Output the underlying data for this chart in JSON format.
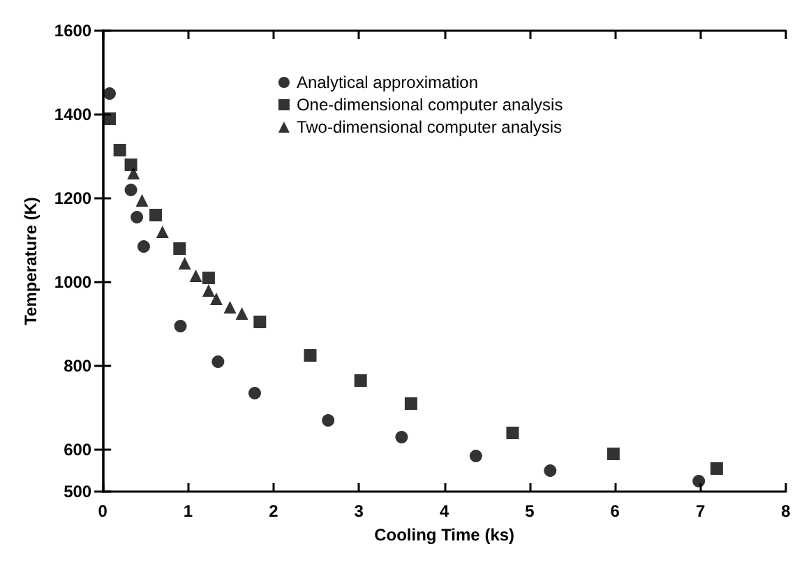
{
  "chart_data": {
    "type": "scatter",
    "xlabel": "Cooling Time (ks)",
    "ylabel": "Temperature (K)",
    "xlim": [
      0,
      8
    ],
    "xticks": [
      0,
      1,
      2,
      3,
      4,
      5,
      6,
      7,
      8
    ],
    "ylim": [
      500,
      1600
    ],
    "yticks": [
      500,
      600,
      800,
      1000,
      1200,
      1400,
      1600
    ],
    "grid": false,
    "legend": "top",
    "series": [
      {
        "name": "Analytical approximation",
        "color": "#000000",
        "marker": "circle",
        "x": [
          0.08,
          0.33,
          0.4,
          0.48,
          0.91,
          1.35,
          1.78,
          2.64,
          3.5,
          4.37,
          5.24,
          6.98
        ],
        "values": [
          1450,
          1220,
          1155,
          1085,
          895,
          810,
          735,
          670,
          630,
          585,
          550,
          525
        ]
      },
      {
        "name": "One-dimensional computer analysis",
        "color": "#000000",
        "marker": "square",
        "x": [
          0.08,
          0.2,
          0.33,
          0.62,
          0.9,
          1.24,
          1.84,
          2.43,
          3.02,
          3.61,
          4.8,
          5.98,
          7.19
        ],
        "values": [
          1390,
          1315,
          1280,
          1160,
          1080,
          1010,
          905,
          825,
          765,
          710,
          640,
          590,
          555
        ]
      },
      {
        "name": "Two-dimensional computer analysis",
        "color": "#000000",
        "marker": "triangle",
        "x": [
          0.36,
          0.46,
          0.7,
          0.96,
          1.09,
          1.24,
          1.33,
          1.49,
          1.63
        ],
        "values": [
          1260,
          1195,
          1120,
          1045,
          1015,
          980,
          960,
          940,
          925
        ]
      }
    ]
  }
}
